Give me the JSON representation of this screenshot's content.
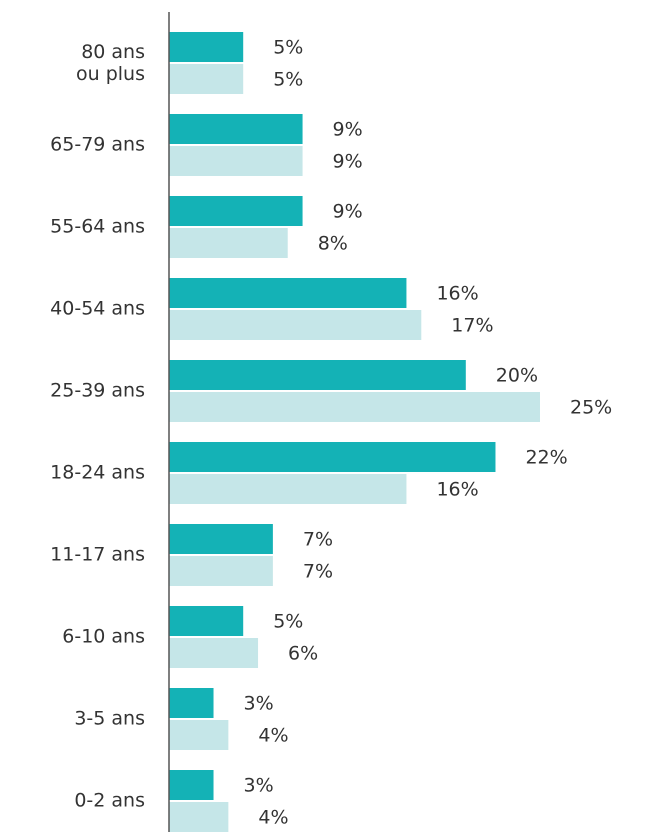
{
  "chart_data": {
    "type": "bar",
    "orientation": "horizontal",
    "categories": [
      "80 ans\nou plus",
      "65-79 ans",
      "55-64 ans",
      "40-54 ans",
      "25-39 ans",
      "18-24 ans",
      "11-17 ans",
      "6-10 ans",
      "3-5 ans",
      "0-2 ans"
    ],
    "series": [
      {
        "color": "#14b2b6",
        "values": [
          5,
          9,
          9,
          16,
          20,
          22,
          7,
          5,
          3,
          3
        ],
        "value_labels": [
          "5%",
          "9%",
          "9%",
          "16%",
          "20%",
          "22%",
          "7%",
          "5%",
          "3%",
          "3%"
        ]
      },
      {
        "color": "#c5e6e8",
        "values": [
          5,
          9,
          8,
          17,
          25,
          16,
          7,
          6,
          4,
          4
        ],
        "value_labels": [
          "5%",
          "9%",
          "8%",
          "17%",
          "25%",
          "16%",
          "7%",
          "6%",
          "4%",
          "4%"
        ]
      }
    ]
  }
}
